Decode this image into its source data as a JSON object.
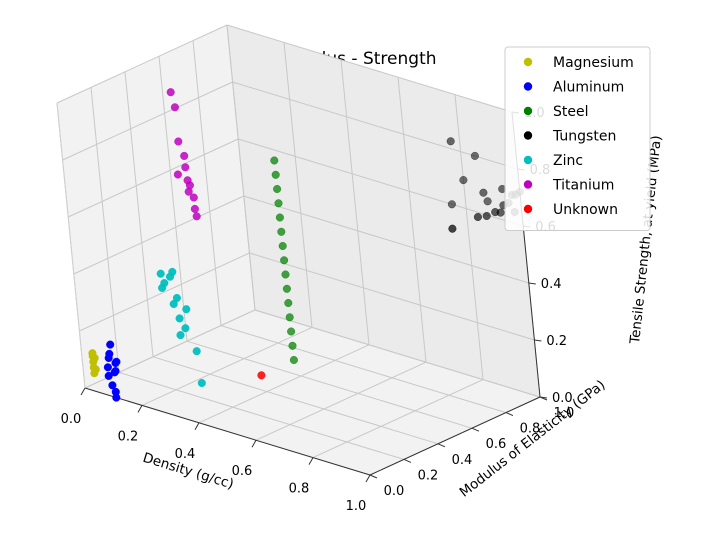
{
  "chart_data": {
    "type": "scatter",
    "title": "Density - Modulus - Strength",
    "xlabel": "Density (g/cc)",
    "ylabel": "Modulus of Elasticity (GPa)",
    "zlabel": "Tensile Strength, at yield (MPa)",
    "xlim": [
      0,
      1
    ],
    "ylim": [
      0,
      1
    ],
    "zlim": [
      0,
      1
    ],
    "xticks": [
      "0.0",
      "0.2",
      "0.4",
      "0.6",
      "0.8",
      "1.0"
    ],
    "yticks": [
      "0.0",
      "0.2",
      "0.4",
      "0.6",
      "0.8",
      "1.0"
    ],
    "zticks": [
      "0.0",
      "0.2",
      "0.4",
      "0.6",
      "0.8",
      "1.0"
    ],
    "grid": true,
    "legend_position": "top-right",
    "series": [
      {
        "name": "Magnesium",
        "color": "#bfbf00",
        "points": [
          [
            0.02,
            0.03,
            0.05
          ],
          [
            0.02,
            0.03,
            0.07
          ],
          [
            0.02,
            0.03,
            0.09
          ],
          [
            0.02,
            0.03,
            0.11
          ],
          [
            0.02,
            0.03,
            0.12
          ],
          [
            0.02,
            0.04,
            0.06
          ],
          [
            0.02,
            0.04,
            0.1
          ]
        ]
      },
      {
        "name": "Aluminum",
        "color": "#0000ff",
        "points": [
          [
            0.09,
            0.0,
            0.07
          ],
          [
            0.09,
            0.0,
            0.1
          ],
          [
            0.09,
            0.01,
            0.13
          ],
          [
            0.1,
            0.0,
            0.04
          ],
          [
            0.1,
            0.0,
            0.15
          ],
          [
            0.1,
            0.01,
            0.18
          ],
          [
            0.11,
            0.0,
            0.02
          ],
          [
            0.11,
            0.01,
            0.09
          ],
          [
            0.11,
            0.02,
            0.12
          ],
          [
            0.11,
            0.0,
            0.0
          ],
          [
            0.1,
            0.02,
            0.08
          ],
          [
            0.1,
            0.03,
            0.11
          ]
        ]
      },
      {
        "name": "Steel",
        "color": "#008000",
        "points": [
          [
            0.38,
            0.6,
            0.05
          ],
          [
            0.38,
            0.6,
            0.1
          ],
          [
            0.38,
            0.6,
            0.15
          ],
          [
            0.38,
            0.6,
            0.2
          ],
          [
            0.38,
            0.6,
            0.25
          ],
          [
            0.38,
            0.6,
            0.3
          ],
          [
            0.38,
            0.6,
            0.35
          ],
          [
            0.38,
            0.6,
            0.4
          ],
          [
            0.38,
            0.6,
            0.45
          ],
          [
            0.38,
            0.6,
            0.5
          ],
          [
            0.38,
            0.6,
            0.55
          ],
          [
            0.38,
            0.6,
            0.6
          ],
          [
            0.38,
            0.6,
            0.65
          ],
          [
            0.38,
            0.6,
            0.7
          ],
          [
            0.38,
            0.6,
            0.75
          ]
        ]
      },
      {
        "name": "Tungsten",
        "color": "#000000",
        "points": [
          [
            0.75,
            1.0,
            0.6
          ],
          [
            0.8,
            1.0,
            0.7
          ],
          [
            0.85,
            1.0,
            0.8
          ],
          [
            0.8,
            0.95,
            0.85
          ],
          [
            0.88,
            1.0,
            0.65
          ],
          [
            0.9,
            0.95,
            0.7
          ],
          [
            0.95,
            0.98,
            0.72
          ],
          [
            0.97,
            1.0,
            0.7
          ],
          [
            0.99,
            0.99,
            0.71
          ],
          [
            1.0,
            1.0,
            0.72
          ],
          [
            1.0,
            0.96,
            0.66
          ],
          [
            1.0,
            0.93,
            0.7
          ],
          [
            1.0,
            0.9,
            0.7
          ],
          [
            1.0,
            0.88,
            0.68
          ],
          [
            1.0,
            0.85,
            0.69
          ],
          [
            1.0,
            0.8,
            0.69
          ],
          [
            1.0,
            0.75,
            0.7
          ],
          [
            1.0,
            0.6,
            0.7
          ]
        ]
      },
      {
        "name": "Zinc",
        "color": "#00bfbf",
        "points": [
          [
            0.25,
            0.1,
            0.4
          ],
          [
            0.25,
            0.1,
            0.45
          ],
          [
            0.26,
            0.1,
            0.42
          ],
          [
            0.27,
            0.12,
            0.44
          ],
          [
            0.28,
            0.12,
            0.46
          ],
          [
            0.28,
            0.11,
            0.35
          ],
          [
            0.29,
            0.12,
            0.3
          ],
          [
            0.3,
            0.1,
            0.25
          ],
          [
            0.3,
            0.1,
            0.38
          ],
          [
            0.32,
            0.1,
            0.28
          ],
          [
            0.34,
            0.12,
            0.2
          ],
          [
            0.33,
            0.1,
            0.35
          ],
          [
            0.36,
            0.1,
            0.1
          ]
        ]
      },
      {
        "name": "Titanium",
        "color": "#bf00bf",
        "points": [
          [
            0.19,
            0.35,
            1.0
          ],
          [
            0.2,
            0.35,
            0.95
          ],
          [
            0.2,
            0.35,
            0.83
          ],
          [
            0.21,
            0.36,
            0.78
          ],
          [
            0.21,
            0.36,
            0.74
          ],
          [
            0.22,
            0.35,
            0.7
          ],
          [
            0.22,
            0.36,
            0.68
          ],
          [
            0.22,
            0.35,
            0.66
          ],
          [
            0.23,
            0.36,
            0.64
          ],
          [
            0.23,
            0.36,
            0.6
          ],
          [
            0.24,
            0.35,
            0.58
          ],
          [
            0.2,
            0.33,
            0.72
          ]
        ]
      },
      {
        "name": "Unknown",
        "color": "#ff0000",
        "points": [
          [
            0.45,
            0.3,
            0.1
          ]
        ]
      }
    ]
  }
}
